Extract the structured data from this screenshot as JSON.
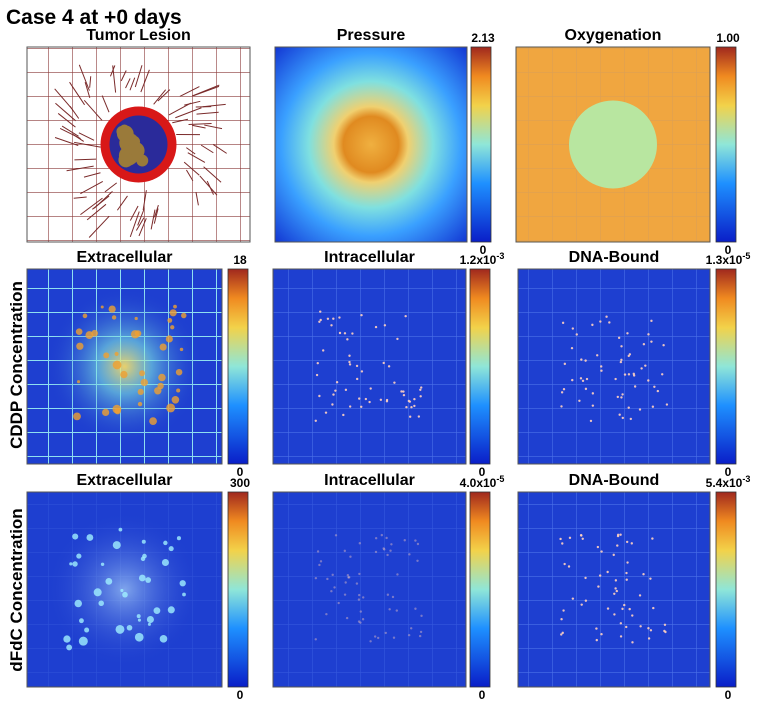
{
  "title": "Case 4 at +0 days",
  "row_labels": [
    "CDDP Concentration",
    "dFdC Concentration"
  ],
  "panels": [
    {
      "title": "Tumor Lesion"
    },
    {
      "title": "Pressure",
      "max": "2.13",
      "min": "0"
    },
    {
      "title": "Oxygenation",
      "max": "1.00",
      "min": "0"
    },
    {
      "title": "Extracellular",
      "max": "18",
      "min": "0"
    },
    {
      "title": "Intracellular",
      "max": {
        "base": "1.2x10",
        "exp": "-3"
      },
      "min": "0"
    },
    {
      "title": "DNA-Bound",
      "max": {
        "base": "1.3x10",
        "exp": "-5"
      },
      "min": "0"
    },
    {
      "title": "Extracellular",
      "max": "300",
      "min": "0"
    },
    {
      "title": "Intracellular",
      "max": {
        "base": "4.0x10",
        "exp": "-5"
      },
      "min": "0"
    },
    {
      "title": "DNA-Bound",
      "max": {
        "base": "5.4x10",
        "exp": "-3"
      },
      "min": "0"
    }
  ]
}
